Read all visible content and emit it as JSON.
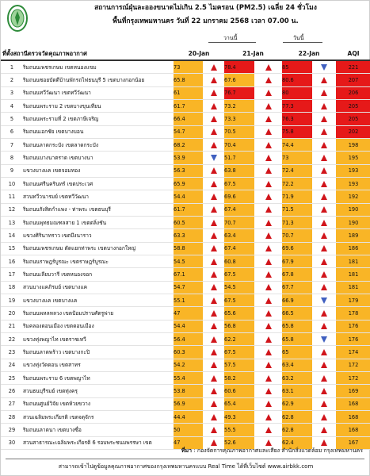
{
  "header": {
    "title_line1": "สถานการณ์ฝุ่นละอองขนาดไม่เกิน 2.5 ไมครอน (PM2.5) เฉลี่ย 24 ชั่วโมง",
    "title_line2": "พื้นที่กรุงเทพมหานคร วันที่ 22 มกราคม 2568 เวลา 07.00 น.",
    "yesterday_label": "วานนี้",
    "today_label": "วันนี้",
    "logo_icon": "bma-seal-icon"
  },
  "columns": {
    "location": "ที่ตั้งสถานีตรวจวัดคุณภาพอากาศ",
    "d1": "20-Jan",
    "d2": "21-Jan",
    "d3": "22-Jan",
    "aqi": "AQI"
  },
  "colors": {
    "orange": "#f9b526",
    "red": "#e61919",
    "yellow": "#fff200",
    "arrow_up": "#d1151b",
    "arrow_down": "#4060c0"
  },
  "rows": [
    {
      "no": "1",
      "location": "ริมถนนเพชรเกษม เขตหนองแขม",
      "v1": "73",
      "c1": "orange",
      "t1": "up",
      "v2": "78.4",
      "c2": "red",
      "t2": "up",
      "v3": "85",
      "c3": "red",
      "t3": "down",
      "aqi": "221",
      "ca": "red"
    },
    {
      "no": "2",
      "location": "ริมถนนซอยบัดดีบ้านพักรถไฟธนบุรี 5 เขตบางกอกน้อย",
      "v1": "65.8",
      "c1": "orange",
      "t1": "up",
      "v2": "67.6",
      "c2": "orange",
      "t2": "up",
      "v3": "80.6",
      "c3": "red",
      "t3": "up",
      "aqi": "207",
      "ca": "red"
    },
    {
      "no": "3",
      "location": "ริมถนนทวีวัฒนา เขตทวีวัฒนา",
      "v1": "61",
      "c1": "orange",
      "t1": "up",
      "v2": "76.7",
      "c2": "red",
      "t2": "up",
      "v3": "80",
      "c3": "red",
      "t3": "up",
      "aqi": "206",
      "ca": "red"
    },
    {
      "no": "4",
      "location": "ริมถนนพระราม 2 เขตบางขุนเทียน",
      "v1": "61.7",
      "c1": "orange",
      "t1": "up",
      "v2": "73.2",
      "c2": "orange",
      "t2": "up",
      "v3": "77.3",
      "c3": "red",
      "t3": "up",
      "aqi": "205",
      "ca": "red"
    },
    {
      "no": "5",
      "location": "ริมถนนพระรามที่ 2 เขตภาษีเจริญ",
      "v1": "66.4",
      "c1": "orange",
      "t1": "up",
      "v2": "73.3",
      "c2": "orange",
      "t2": "up",
      "v3": "76.3",
      "c3": "red",
      "t3": "up",
      "aqi": "205",
      "ca": "red"
    },
    {
      "no": "6",
      "location": "ริมถนนเอกชัย เขตบางบอน",
      "v1": "54.7",
      "c1": "orange",
      "t1": "up",
      "v2": "70.5",
      "c2": "orange",
      "t2": "up",
      "v3": "75.8",
      "c3": "red",
      "t3": "up",
      "aqi": "202",
      "ca": "red"
    },
    {
      "no": "7",
      "location": "ริมถนนลาดกระบัง เขตลาดกระบัง",
      "v1": "68.2",
      "c1": "orange",
      "t1": "up",
      "v2": "70.4",
      "c2": "orange",
      "t2": "up",
      "v3": "74.4",
      "c3": "orange",
      "t3": "up",
      "aqi": "198",
      "ca": "orange"
    },
    {
      "no": "8",
      "location": "ริมถนนบางนาตราด เขตบางนา",
      "v1": "53.9",
      "c1": "orange",
      "t1": "down",
      "v2": "51.7",
      "c2": "orange",
      "t2": "up",
      "v3": "73",
      "c3": "orange",
      "t3": "up",
      "aqi": "195",
      "ca": "orange"
    },
    {
      "no": "9",
      "location": "แขวงบางแค เขตจอมทอง",
      "v1": "56.3",
      "c1": "orange",
      "t1": "up",
      "v2": "63.8",
      "c2": "orange",
      "t2": "up",
      "v3": "72.4",
      "c3": "orange",
      "t3": "up",
      "aqi": "193",
      "ca": "orange"
    },
    {
      "no": "10",
      "location": "ริมถนนศรีนครินทร์ เขตประเวศ",
      "v1": "65.9",
      "c1": "orange",
      "t1": "up",
      "v2": "67.5",
      "c2": "orange",
      "t2": "up",
      "v3": "72.2",
      "c3": "orange",
      "t3": "up",
      "aqi": "193",
      "ca": "orange"
    },
    {
      "no": "11",
      "location": "สวนทวีวนารมย์ เขตทวีวัฒนา",
      "v1": "54.4",
      "c1": "orange",
      "t1": "up",
      "v2": "69.6",
      "c2": "orange",
      "t2": "up",
      "v3": "71.9",
      "c3": "orange",
      "t3": "up",
      "aqi": "192",
      "ca": "orange"
    },
    {
      "no": "12",
      "location": "ริมถนนรังสิตกำแพง - ท่าพระ เขตธนบุรี",
      "v1": "61.7",
      "c1": "orange",
      "t1": "up",
      "v2": "67.4",
      "c2": "orange",
      "t2": "up",
      "v3": "71.5",
      "c3": "orange",
      "t3": "up",
      "aqi": "190",
      "ca": "orange"
    },
    {
      "no": "13",
      "location": "ริมถนนพุทธมณฑลสาย 1 เขตตลิ่งชัน",
      "v1": "60.5",
      "c1": "orange",
      "t1": "up",
      "v2": "70.7",
      "c2": "orange",
      "t2": "up",
      "v3": "71.3",
      "c3": "orange",
      "t3": "up",
      "aqi": "190",
      "ca": "orange"
    },
    {
      "no": "14",
      "location": "แขวงศิรินาทราว เขตบึงนาราว",
      "v1": "63.3",
      "c1": "orange",
      "t1": "up",
      "v2": "63.4",
      "c2": "orange",
      "t2": "up",
      "v3": "70.7",
      "c3": "orange",
      "t3": "up",
      "aqi": "189",
      "ca": "orange"
    },
    {
      "no": "15",
      "location": "ริมถนนเพชรเกษม ตัดแยกท่าพระ เขตบางกอกใหญ่",
      "v1": "58.8",
      "c1": "orange",
      "t1": "up",
      "v2": "67.4",
      "c2": "orange",
      "t2": "up",
      "v3": "69.6",
      "c3": "orange",
      "t3": "up",
      "aqi": "186",
      "ca": "orange"
    },
    {
      "no": "16",
      "location": "ริมถนนราษฎร์บูรณะ เขตราษฎร์บูรณะ",
      "v1": "54.5",
      "c1": "orange",
      "t1": "up",
      "v2": "60.8",
      "c2": "orange",
      "t2": "up",
      "v3": "67.9",
      "c3": "orange",
      "t3": "up",
      "aqi": "181",
      "ca": "orange"
    },
    {
      "no": "17",
      "location": "ริมถนนเลียบวารี เขตหนองจอก",
      "v1": "67.1",
      "c1": "orange",
      "t1": "up",
      "v2": "67.5",
      "c2": "orange",
      "t2": "up",
      "v3": "67.8",
      "c3": "orange",
      "t3": "up",
      "aqi": "181",
      "ca": "orange"
    },
    {
      "no": "18",
      "location": "สวนบางแคภิรมย์ เขตบางแค",
      "v1": "54.7",
      "c1": "orange",
      "t1": "up",
      "v2": "54.5",
      "c2": "orange",
      "t2": "up",
      "v3": "67.7",
      "c3": "orange",
      "t3": "up",
      "aqi": "181",
      "ca": "orange"
    },
    {
      "no": "19",
      "location": "แขวงบางแค เขตบางแค",
      "v1": "55.1",
      "c1": "orange",
      "t1": "up",
      "v2": "67.5",
      "c2": "orange",
      "t2": "up",
      "v3": "66.9",
      "c3": "orange",
      "t3": "down",
      "aqi": "179",
      "ca": "orange"
    },
    {
      "no": "20",
      "location": "ริมถนนพหลหลวง เขตป้อมปราบศัตรูพ่าย",
      "v1": "47",
      "c1": "orange",
      "t1": "up",
      "v2": "65.6",
      "c2": "orange",
      "t2": "up",
      "v3": "66.5",
      "c3": "orange",
      "t3": "up",
      "aqi": "178",
      "ca": "orange"
    },
    {
      "no": "21",
      "location": "ริมคลองดอนเมือง เขตดอนเมือง",
      "v1": "54.4",
      "c1": "orange",
      "t1": "up",
      "v2": "56.8",
      "c2": "orange",
      "t2": "up",
      "v3": "65.8",
      "c3": "orange",
      "t3": "up",
      "aqi": "176",
      "ca": "orange"
    },
    {
      "no": "22",
      "location": "แขวงทุ่งพญาไท เขตราชเทวี",
      "v1": "56.4",
      "c1": "orange",
      "t1": "up",
      "v2": "62.2",
      "c2": "orange",
      "t2": "up",
      "v3": "65.8",
      "c3": "orange",
      "t3": "down",
      "aqi": "176",
      "ca": "orange"
    },
    {
      "no": "23",
      "location": "ริมถนนลาดพร้าว เขตบางกะปิ",
      "v1": "60.3",
      "c1": "orange",
      "t1": "up",
      "v2": "67.5",
      "c2": "orange",
      "t2": "up",
      "v3": "65",
      "c3": "orange",
      "t3": "up",
      "aqi": "174",
      "ca": "orange"
    },
    {
      "no": "24",
      "location": "แขวงทุ่งวัดดอน เขตสาทร",
      "v1": "54.2",
      "c1": "orange",
      "t1": "up",
      "v2": "57.5",
      "c2": "orange",
      "t2": "up",
      "v3": "63.4",
      "c3": "orange",
      "t3": "up",
      "aqi": "172",
      "ca": "orange"
    },
    {
      "no": "25",
      "location": "ริมถนนพระราม 6 เขตพญาไท",
      "v1": "55.4",
      "c1": "orange",
      "t1": "up",
      "v2": "58.2",
      "c2": "orange",
      "t2": "up",
      "v3": "63.2",
      "c3": "orange",
      "t3": "up",
      "aqi": "172",
      "ca": "orange"
    },
    {
      "no": "26",
      "location": "สวนธนบุรีรมย์ เขตทุ่งครุ",
      "v1": "53.8",
      "c1": "orange",
      "t1": "up",
      "v2": "60.6",
      "c2": "orange",
      "t2": "up",
      "v3": "63.1",
      "c3": "orange",
      "t3": "up",
      "aqi": "169",
      "ca": "orange"
    },
    {
      "no": "27",
      "location": "ริมถนนศูนย์วิจัย เขตห้วยขวาง",
      "v1": "56.9",
      "c1": "orange",
      "t1": "up",
      "v2": "65.4",
      "c2": "orange",
      "t2": "up",
      "v3": "62.9",
      "c3": "orange",
      "t3": "up",
      "aqi": "168",
      "ca": "orange"
    },
    {
      "no": "28",
      "location": "สวนเฉลิมพระเกียรติ เขตจตุจักร",
      "v1": "44.4",
      "c1": "orange",
      "t1": "up",
      "v2": "49.3",
      "c2": "orange",
      "t2": "up",
      "v3": "62.8",
      "c3": "orange",
      "t3": "up",
      "aqi": "168",
      "ca": "orange"
    },
    {
      "no": "29",
      "location": "ริมถนนลาดนา เขตบางซื่อ",
      "v1": "50",
      "c1": "orange",
      "t1": "up",
      "v2": "55.5",
      "c2": "orange",
      "t2": "up",
      "v3": "62.8",
      "c3": "orange",
      "t3": "up",
      "aqi": "168",
      "ca": "orange"
    },
    {
      "no": "30",
      "location": "สวนสาธารณะเฉลิมพระเกียรติ 6 รอบพระชนมพรรษา เขต",
      "v1": "47",
      "c1": "orange",
      "t1": "up",
      "v2": "52.6",
      "c2": "orange",
      "t2": "up",
      "v3": "62.4",
      "c3": "orange",
      "t3": "up",
      "aqi": "167",
      "ca": "orange"
    }
  ],
  "footer": {
    "credit_label": "ที่มา",
    "credit_text": ": กองจัดการคุณภาพอากาศและเสียง สำนักสิ่งแวดล้อม กรุงเทพมหานคร",
    "realtime_text": "สามารถเข้าไปดูข้อมูลคุณภาพอากาศของกรุงเทพมหานครแบบ Real Time ได้ที่เว็บไซต์ www.airbkk.com"
  }
}
